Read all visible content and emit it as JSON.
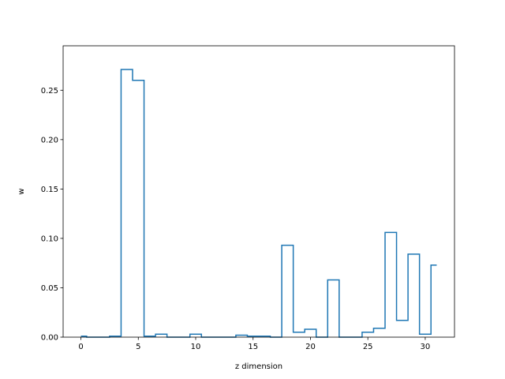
{
  "chart_data": {
    "type": "step",
    "title": "",
    "xlabel": "z dimension",
    "ylabel": "w",
    "xlim": [
      -1.55,
      32.55
    ],
    "ylim": [
      0.0,
      0.295
    ],
    "xticks": [
      0,
      5,
      10,
      15,
      20,
      25,
      30
    ],
    "xtick_labels": [
      "0",
      "5",
      "10",
      "15",
      "20",
      "25",
      "30"
    ],
    "yticks": [
      0.0,
      0.05,
      0.1,
      0.15,
      0.2,
      0.25
    ],
    "ytick_labels": [
      "0.00",
      "0.05",
      "0.10",
      "0.15",
      "0.20",
      "0.25"
    ],
    "grid": false,
    "line_color": "#1f77b4",
    "step_where": "mid",
    "x": [
      0,
      1,
      2,
      3,
      4,
      5,
      6,
      7,
      8,
      9,
      10,
      11,
      12,
      13,
      14,
      15,
      16,
      17,
      18,
      19,
      20,
      21,
      22,
      23,
      24,
      25,
      26,
      27,
      28,
      29,
      30,
      31
    ],
    "values": [
      0.001,
      0.0,
      0.0,
      0.001,
      0.271,
      0.26,
      0.001,
      0.003,
      0.0,
      0.0,
      0.003,
      0.0,
      0.0,
      0.0,
      0.002,
      0.001,
      0.001,
      0.0,
      0.093,
      0.005,
      0.008,
      0.0,
      0.058,
      0.0,
      0.0,
      0.005,
      0.009,
      0.106,
      0.017,
      0.084,
      0.003,
      0.073
    ]
  }
}
